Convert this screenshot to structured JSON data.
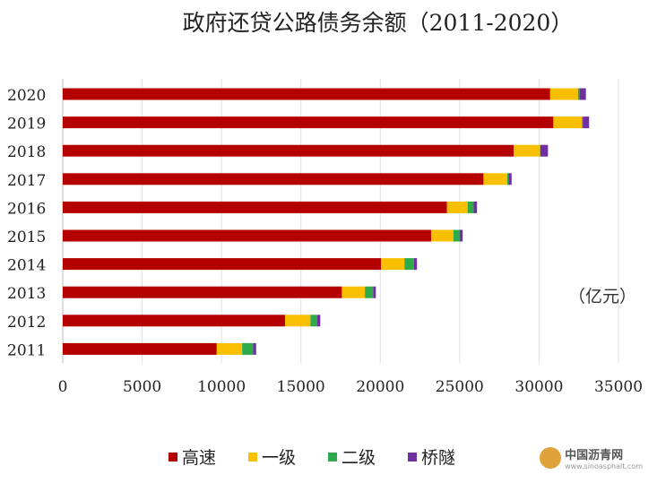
{
  "chart_data": {
    "type": "bar",
    "orientation": "horizontal",
    "stacked": true,
    "title": "政府还贷公路债务余额（2011-2020）",
    "unit_label": "（亿元）",
    "categories": [
      "2020",
      "2019",
      "2018",
      "2017",
      "2016",
      "2015",
      "2014",
      "2013",
      "2012",
      "2011"
    ],
    "series": [
      {
        "name": "高速",
        "color": "#b50000",
        "values": [
          30700,
          30900,
          28400,
          26500,
          24200,
          23200,
          20050,
          17580,
          14000,
          9700
        ]
      },
      {
        "name": "一级",
        "color": "#f8c000",
        "values": [
          1750,
          1800,
          1660,
          1500,
          1300,
          1400,
          1470,
          1450,
          1600,
          1600
        ]
      },
      {
        "name": "二级",
        "color": "#2eaa4a",
        "values": [
          100,
          50,
          20,
          70,
          380,
          400,
          600,
          520,
          430,
          690
        ]
      },
      {
        "name": "桥隧",
        "color": "#7030a0",
        "values": [
          400,
          400,
          480,
          200,
          210,
          190,
          190,
          170,
          190,
          190
        ]
      }
    ],
    "xlim": [
      0,
      35000
    ],
    "xticks": [
      "0",
      "5000",
      "10000",
      "15000",
      "20000",
      "25000",
      "30000",
      "35000"
    ],
    "grid": true,
    "legend_position": "bottom"
  },
  "watermark": {
    "text": "中国沥青网",
    "url_text": "www.sinoasphalt.com"
  }
}
